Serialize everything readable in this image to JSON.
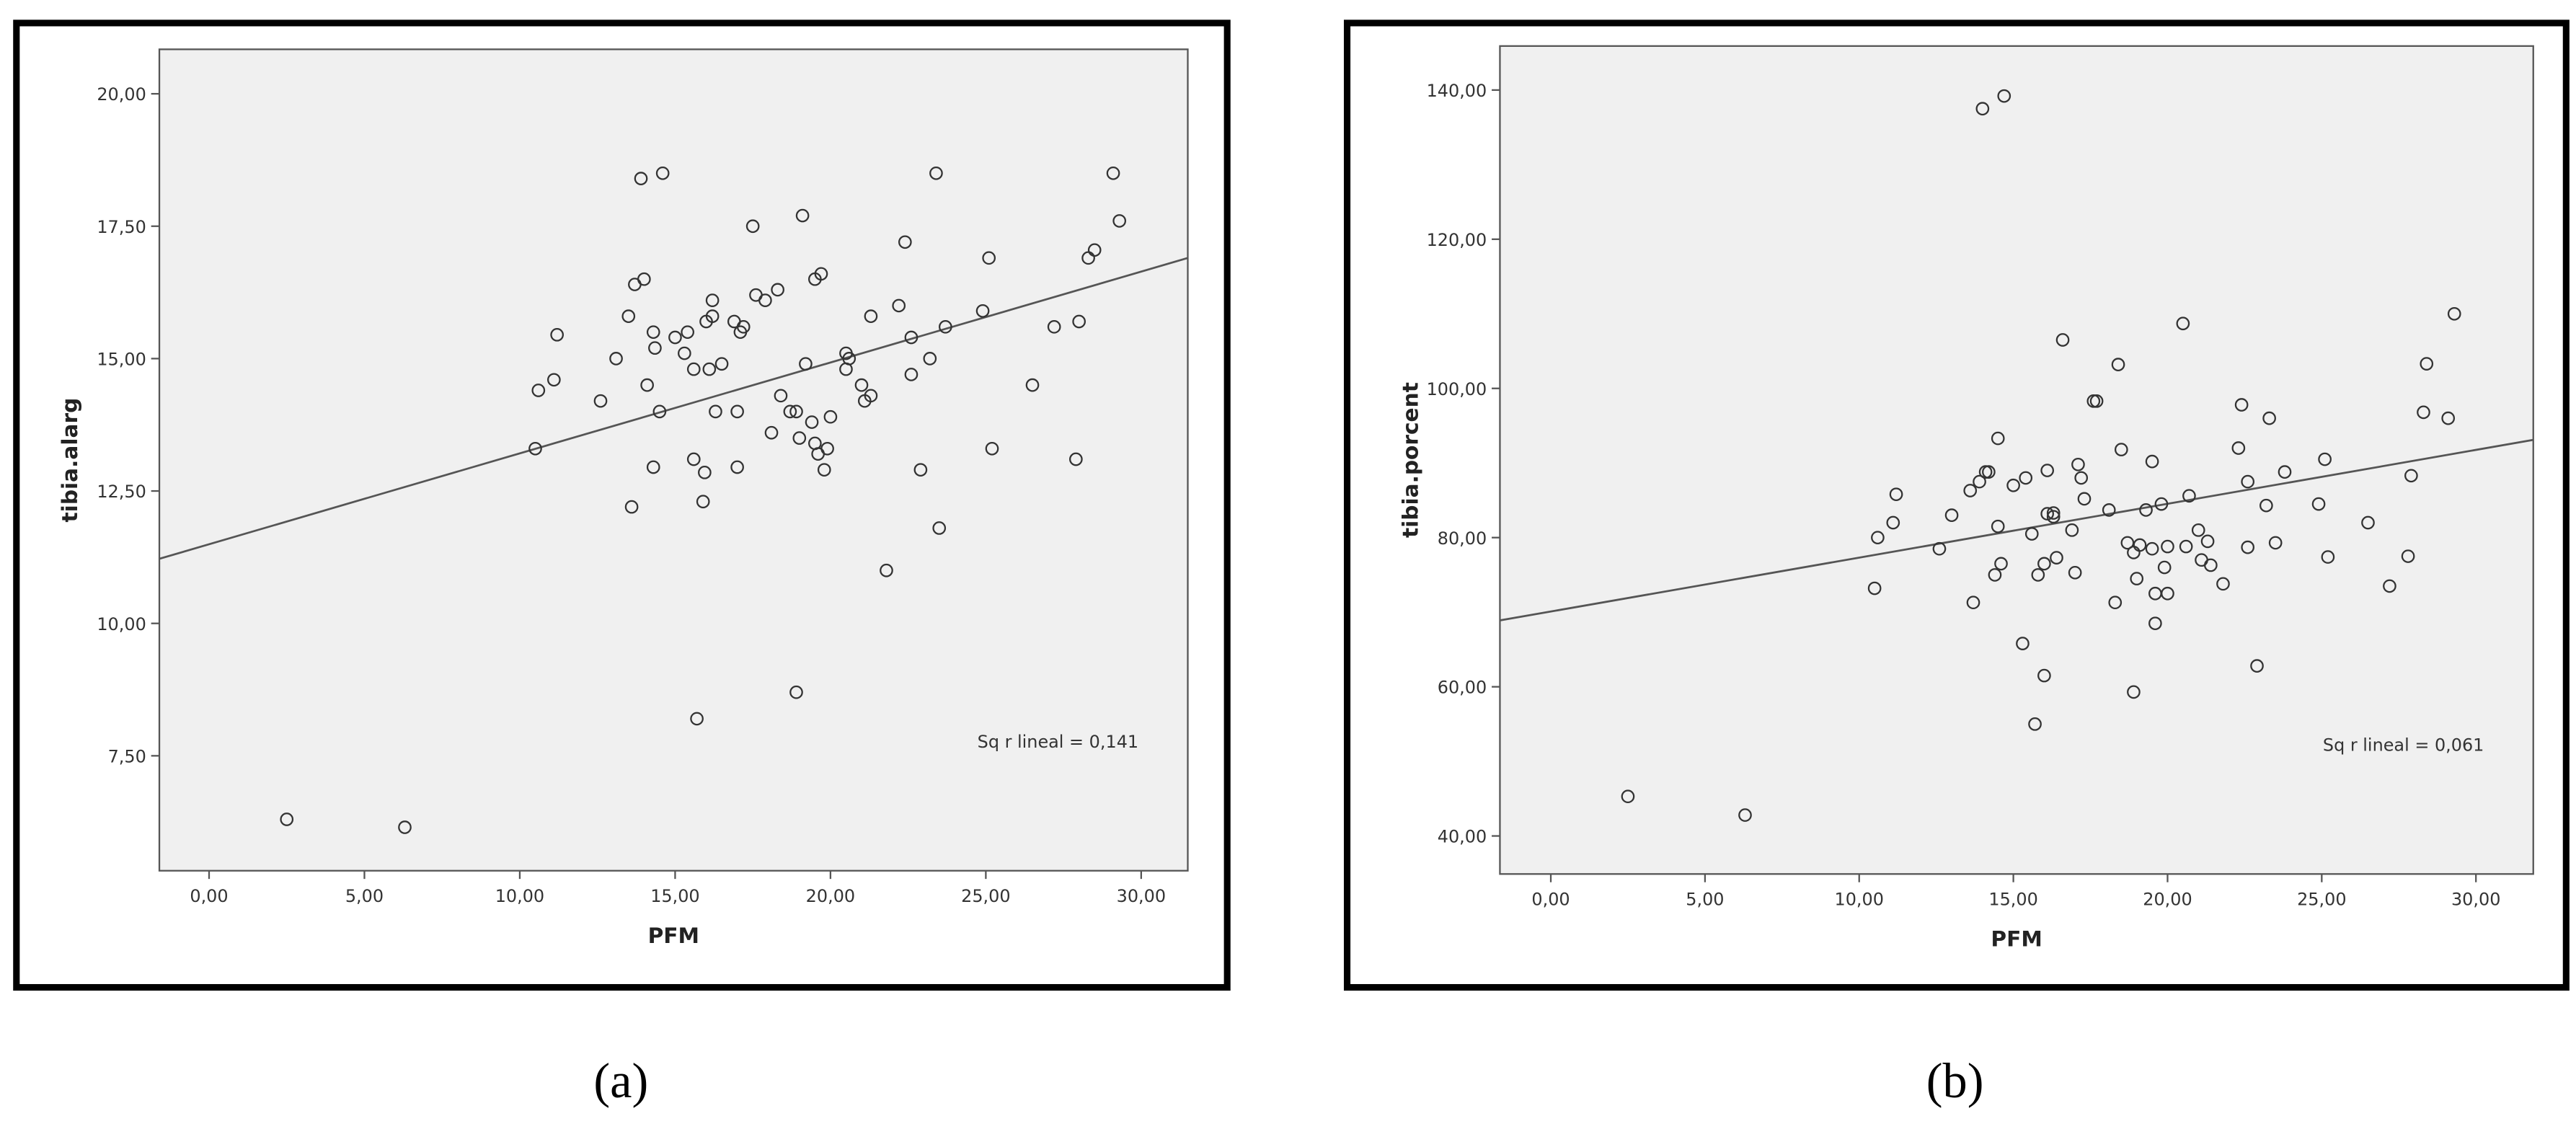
{
  "chart_data": [
    {
      "type": "scatter",
      "caption": "(a)",
      "x_label": "PFM",
      "y_label": "tibia.alarg",
      "annotation": "Sq r lineal = 0,141",
      "xlim": [
        -1.6,
        31.5
      ],
      "ylim": [
        5.33,
        20.84
      ],
      "xticks": [
        {
          "value": 0,
          "label": "0,00"
        },
        {
          "value": 5,
          "label": "5,00"
        },
        {
          "value": 10,
          "label": "10,00"
        },
        {
          "value": 15,
          "label": "15,00"
        },
        {
          "value": 20,
          "label": "20,00"
        },
        {
          "value": 25,
          "label": "25,00"
        },
        {
          "value": 30,
          "label": "30,00"
        }
      ],
      "yticks": [
        {
          "value": 7.5,
          "label": "7,50"
        },
        {
          "value": 10,
          "label": "10,00"
        },
        {
          "value": 12.5,
          "label": "12,50"
        },
        {
          "value": 15,
          "label": "15,00"
        },
        {
          "value": 17.5,
          "label": "17,50"
        },
        {
          "value": 20,
          "label": "20,00"
        }
      ],
      "color": "#333333",
      "plot_background": "#f0f0f0",
      "x": [
        2.5,
        6.3,
        10.5,
        10.6,
        11.1,
        11.2,
        12.6,
        13.1,
        13.5,
        13.6,
        13.7,
        13.9,
        14.0,
        14.1,
        14.3,
        14.3,
        14.35,
        14.5,
        14.6,
        15.0,
        15.3,
        15.4,
        15.6,
        15.6,
        15.7,
        15.9,
        15.95,
        16.0,
        16.1,
        16.2,
        16.2,
        16.3,
        16.5,
        16.9,
        17.0,
        17.0,
        17.1,
        17.2,
        17.5,
        17.6,
        17.9,
        18.1,
        18.3,
        18.4,
        18.7,
        18.9,
        18.9,
        19.0,
        19.1,
        19.2,
        19.4,
        19.5,
        19.5,
        19.6,
        19.7,
        19.8,
        19.9,
        20.0,
        20.5,
        20.5,
        20.6,
        21.0,
        21.1,
        21.3,
        21.3,
        21.8,
        22.2,
        22.4,
        22.6,
        22.6,
        22.9,
        23.2,
        23.4,
        23.5,
        23.7,
        24.9,
        25.1,
        25.2,
        26.5,
        27.2,
        27.9,
        28.0,
        28.3,
        28.5,
        29.1,
        29.3
      ],
      "values": [
        6.3,
        6.15,
        13.3,
        14.4,
        14.6,
        15.45,
        14.2,
        15.0,
        15.8,
        12.2,
        16.4,
        18.4,
        16.5,
        14.5,
        12.95,
        15.5,
        15.2,
        14.0,
        18.5,
        15.4,
        15.1,
        15.5,
        14.8,
        13.1,
        8.2,
        12.3,
        12.85,
        15.7,
        14.8,
        15.8,
        16.1,
        14.0,
        14.9,
        15.7,
        12.95,
        14.0,
        15.5,
        15.6,
        17.5,
        16.2,
        16.1,
        13.6,
        16.3,
        14.3,
        14.0,
        14.0,
        8.7,
        13.5,
        17.7,
        14.9,
        13.8,
        13.4,
        16.5,
        13.2,
        16.6,
        12.9,
        13.3,
        13.9,
        14.8,
        15.1,
        15.0,
        14.5,
        14.2,
        15.8,
        14.3,
        11.0,
        16.0,
        17.2,
        15.4,
        14.7,
        12.9,
        15.0,
        18.5,
        11.8,
        15.6,
        15.9,
        16.9,
        13.3,
        14.5,
        15.6,
        13.1,
        15.7,
        16.9,
        17.05,
        18.5,
        17.6
      ],
      "fit_line": {
        "x": [
          -1.6,
          31.5
        ],
        "values": [
          11.22,
          16.9
        ]
      }
    },
    {
      "type": "scatter",
      "caption": "(b)",
      "x_label": "PFM",
      "y_label": "tibia.porcent",
      "annotation": "Sq r lineal = 0,061",
      "xlim": [
        -1.65,
        31.86
      ],
      "ylim": [
        34.9,
        145.9
      ],
      "xticks": [
        {
          "value": 0,
          "label": "0,00"
        },
        {
          "value": 5,
          "label": "5,00"
        },
        {
          "value": 10,
          "label": "10,00"
        },
        {
          "value": 15,
          "label": "15,00"
        },
        {
          "value": 20,
          "label": "20,00"
        },
        {
          "value": 25,
          "label": "25,00"
        },
        {
          "value": 30,
          "label": "30,00"
        }
      ],
      "yticks": [
        {
          "value": 40,
          "label": "40,00"
        },
        {
          "value": 60,
          "label": "60,00"
        },
        {
          "value": 80,
          "label": "80,00"
        },
        {
          "value": 100,
          "label": "100,00"
        },
        {
          "value": 120,
          "label": "120,00"
        },
        {
          "value": 140,
          "label": "140,00"
        }
      ],
      "color": "#333333",
      "plot_background": "#f0f0f0",
      "x": [
        2.5,
        6.3,
        10.5,
        10.6,
        11.1,
        11.2,
        12.6,
        13.0,
        13.6,
        13.7,
        13.9,
        14.0,
        14.1,
        14.2,
        14.4,
        14.5,
        14.5,
        14.6,
        14.7,
        15.0,
        15.3,
        15.4,
        15.6,
        15.7,
        15.8,
        16.0,
        16.0,
        16.1,
        16.1,
        16.3,
        16.3,
        16.4,
        16.6,
        16.9,
        17.0,
        17.1,
        17.2,
        17.3,
        17.6,
        17.7,
        18.1,
        18.3,
        18.4,
        18.5,
        18.7,
        18.9,
        18.9,
        19.0,
        19.1,
        19.3,
        19.5,
        19.5,
        19.6,
        19.6,
        19.8,
        19.9,
        20.0,
        20.0,
        20.5,
        20.6,
        20.7,
        21.0,
        21.1,
        21.3,
        21.4,
        21.8,
        22.3,
        22.4,
        22.6,
        22.6,
        22.9,
        23.2,
        23.3,
        23.5,
        23.8,
        24.9,
        25.1,
        25.2,
        26.5,
        27.2,
        27.8,
        27.9,
        28.3,
        28.4,
        29.1,
        29.3
      ],
      "values": [
        45.3,
        42.8,
        73.2,
        80.0,
        82.0,
        85.8,
        78.5,
        83.0,
        86.3,
        71.3,
        87.5,
        137.5,
        88.8,
        88.8,
        75.0,
        81.5,
        93.3,
        76.5,
        139.2,
        87.0,
        65.8,
        88.0,
        80.5,
        55.0,
        75.0,
        61.5,
        76.5,
        89.0,
        83.2,
        82.8,
        83.3,
        77.3,
        106.5,
        81.0,
        75.3,
        89.8,
        88.0,
        85.2,
        98.3,
        98.3,
        83.7,
        71.3,
        103.2,
        91.8,
        79.3,
        78.0,
        59.3,
        74.5,
        79.0,
        83.7,
        78.5,
        90.2,
        72.5,
        68.5,
        84.5,
        76.0,
        72.5,
        78.8,
        108.7,
        78.8,
        85.6,
        81.0,
        77.0,
        79.5,
        76.3,
        73.8,
        92.0,
        97.8,
        87.5,
        78.7,
        62.8,
        84.3,
        96.0,
        79.3,
        88.8,
        84.5,
        90.5,
        77.4,
        82.0,
        73.5,
        77.5,
        88.3,
        96.8,
        103.3,
        96.0,
        110.0
      ],
      "fit_line": {
        "x": [
          -1.65,
          31.86
        ],
        "values": [
          68.9,
          93.1
        ]
      }
    }
  ]
}
